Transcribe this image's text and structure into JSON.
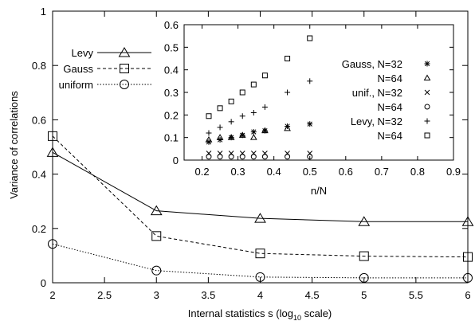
{
  "chart_data": [
    {
      "type": "line",
      "xlabel": "Internal statistics s (log",
      "xlabel_sub": "10",
      "xlabel_tail": " scale)",
      "ylabel": "Variance of correlations",
      "xlim": [
        2,
        6
      ],
      "ylim": [
        0,
        1
      ],
      "xticks": [
        "2",
        "2.5",
        "3",
        "3.5",
        "4",
        "4.5",
        "5",
        "5.5",
        "6"
      ],
      "yticks": [
        "0",
        "0.2",
        "0.4",
        "0.6",
        "0.8",
        "1"
      ],
      "legend_position": "top-left",
      "series": [
        {
          "name": "Levy",
          "marker": "triangle",
          "line": "solid",
          "x": [
            2,
            3,
            4,
            5,
            6
          ],
          "y": [
            0.48,
            0.265,
            0.237,
            0.225,
            0.225
          ]
        },
        {
          "name": "Gauss",
          "marker": "square",
          "line": "dashed",
          "x": [
            2,
            3,
            4,
            5,
            6
          ],
          "y": [
            0.54,
            0.172,
            0.108,
            0.098,
            0.095
          ]
        },
        {
          "name": "uniform",
          "marker": "circle",
          "line": "dotted",
          "x": [
            2,
            3,
            4,
            5,
            6
          ],
          "y": [
            0.143,
            0.045,
            0.021,
            0.018,
            0.018
          ]
        }
      ]
    },
    {
      "type": "scatter",
      "xlabel": "n/N",
      "ylabel": "",
      "xlim": [
        0.15,
        0.9
      ],
      "ylim": [
        0,
        0.6
      ],
      "xticks": [
        "0.2",
        "0.3",
        "0.4",
        "0.5",
        "0.6",
        "0.7",
        "0.8",
        "0.9"
      ],
      "yticks": [
        "0",
        "0.1",
        "0.2",
        "0.3",
        "0.4",
        "0.5",
        "0.6"
      ],
      "legend_position": "right",
      "series": [
        {
          "name": "Gauss, N=32",
          "marker": "star",
          "x": [
            0.21875,
            0.25,
            0.28125,
            0.3125,
            0.34375,
            0.375,
            0.4375,
            0.5
          ],
          "y": [
            0.08,
            0.09,
            0.1,
            0.11,
            0.125,
            0.13,
            0.15,
            0.16
          ]
        },
        {
          "name": "N=64",
          "marker": "triangle-small",
          "x": [
            0.21875,
            0.25,
            0.28125,
            0.3125,
            0.34375,
            0.375,
            0.4375
          ],
          "y": [
            0.09,
            0.1,
            0.1,
            0.11,
            0.1,
            0.13,
            0.14
          ]
        },
        {
          "name": "unif., N=32",
          "marker": "x",
          "x": [
            0.21875,
            0.25,
            0.28125,
            0.3125,
            0.34375,
            0.375,
            0.4375,
            0.5
          ],
          "y": [
            0.03,
            0.03,
            0.03,
            0.03,
            0.03,
            0.03,
            0.03,
            0.03
          ]
        },
        {
          "name": "N=64",
          "marker": "circle-small",
          "x": [
            0.21875,
            0.25,
            0.28125,
            0.3125,
            0.34375,
            0.375,
            0.4375,
            0.5
          ],
          "y": [
            0.015,
            0.015,
            0.015,
            0.015,
            0.015,
            0.015,
            0.015,
            0.015
          ]
        },
        {
          "name": "Levy, N=32",
          "marker": "plus",
          "x": [
            0.21875,
            0.25,
            0.28125,
            0.3125,
            0.34375,
            0.375,
            0.4375,
            0.5
          ],
          "y": [
            0.12,
            0.145,
            0.17,
            0.195,
            0.21,
            0.235,
            0.3,
            0.35
          ]
        },
        {
          "name": "N=64",
          "marker": "square-small",
          "x": [
            0.21875,
            0.25,
            0.28125,
            0.3125,
            0.34375,
            0.375,
            0.4375,
            0.5
          ],
          "y": [
            0.195,
            0.23,
            0.26,
            0.3,
            0.335,
            0.375,
            0.45,
            0.54
          ]
        }
      ]
    }
  ]
}
